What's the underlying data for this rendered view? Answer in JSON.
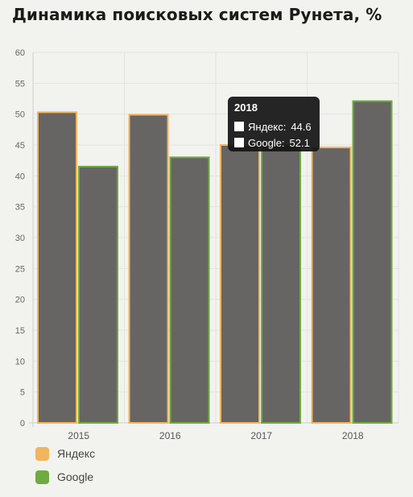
{
  "chart_data": {
    "type": "bar",
    "title": "Динамика поисковых систем Рунета, %",
    "categories": [
      "2015",
      "2016",
      "2017",
      "2018"
    ],
    "series": [
      {
        "name": "Яндекс",
        "values": [
          50.3,
          49.9,
          45.0,
          44.6
        ],
        "color": "#f0b55d"
      },
      {
        "name": "Google",
        "values": [
          41.5,
          43.0,
          45.0,
          52.1
        ],
        "color": "#6fac3f"
      }
    ],
    "bar_fill": "#666564",
    "ylim": [
      0,
      60
    ],
    "yticks": [
      0,
      5,
      10,
      15,
      20,
      25,
      30,
      35,
      40,
      45,
      50,
      55,
      60
    ],
    "grid": true,
    "legend": "bottom-left"
  },
  "tooltip": {
    "title": "2018",
    "rows": [
      {
        "name": "Яндекс:",
        "value": "44.6"
      },
      {
        "name": "Google:",
        "value": "52.1"
      }
    ]
  }
}
